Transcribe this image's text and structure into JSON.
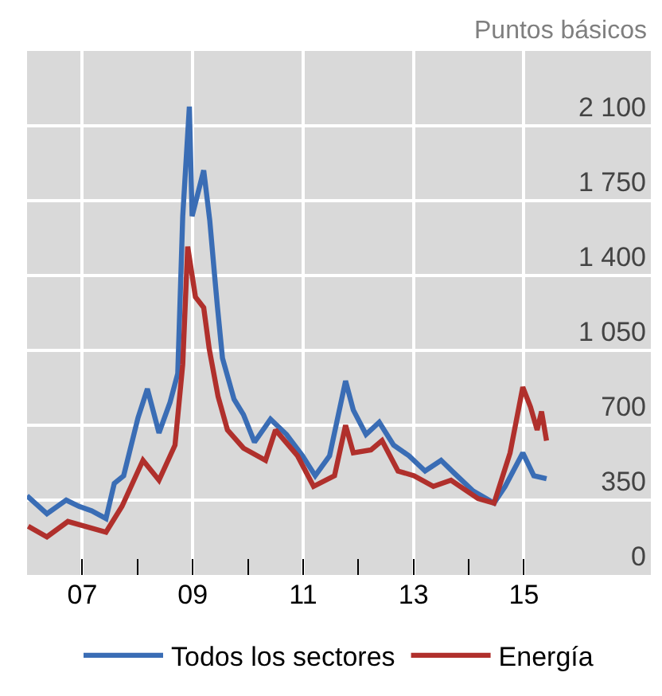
{
  "chart_data": {
    "type": "line",
    "ylabel": "Puntos básicos",
    "xlim": [
      2006,
      2017.3
    ],
    "ylim": [
      0,
      2450
    ],
    "xticks": [
      {
        "value": 2007,
        "label": "07"
      },
      {
        "value": 2008,
        "label": null
      },
      {
        "value": 2009,
        "label": "09"
      },
      {
        "value": 2010,
        "label": null
      },
      {
        "value": 2011,
        "label": "11"
      },
      {
        "value": 2012,
        "label": null
      },
      {
        "value": 2013,
        "label": "13"
      },
      {
        "value": 2014,
        "label": null
      },
      {
        "value": 2015,
        "label": "15"
      }
    ],
    "yticks": [
      {
        "value": 0,
        "label": "0"
      },
      {
        "value": 350,
        "label": "350"
      },
      {
        "value": 700,
        "label": "700"
      },
      {
        "value": 1050,
        "label": "1 050"
      },
      {
        "value": 1400,
        "label": "1 400"
      },
      {
        "value": 1750,
        "label": "1 750"
      },
      {
        "value": 2100,
        "label": "2 100"
      }
    ],
    "grid": true,
    "legend": "bottom",
    "marker": "none",
    "line_style": "solid",
    "series": [
      {
        "name": "Todos los sectores",
        "color": "#3a6db5",
        "x": [
          2006.0,
          2006.36,
          2006.71,
          2006.94,
          2007.17,
          2007.43,
          2007.58,
          2007.75,
          2008.01,
          2008.18,
          2008.39,
          2008.59,
          2008.73,
          2008.82,
          2008.94,
          2008.99,
          2009.2,
          2009.31,
          2009.4,
          2009.45,
          2009.54,
          2009.75,
          2009.92,
          2010.12,
          2010.41,
          2010.7,
          2010.99,
          2011.22,
          2011.48,
          2011.77,
          2011.91,
          2012.14,
          2012.38,
          2012.64,
          2012.92,
          2013.21,
          2013.5,
          2013.73,
          2014.08,
          2014.46,
          2014.66,
          2014.98,
          2015.18,
          2015.41
        ],
        "values": [
          370,
          286,
          350,
          321,
          300,
          264,
          428,
          464,
          735,
          870,
          664,
          807,
          942,
          1678,
          2190,
          1678,
          1892,
          1657,
          1392,
          1250,
          1014,
          821,
          750,
          621,
          728,
          657,
          557,
          464,
          557,
          907,
          771,
          657,
          714,
          607,
          557,
          486,
          536,
          478,
          393,
          336,
          414,
          571,
          464,
          450
        ]
      },
      {
        "name": "Energía",
        "color": "#b0302c",
        "x": [
          2006.02,
          2006.36,
          2006.74,
          2007.43,
          2007.72,
          2008.1,
          2008.39,
          2008.68,
          2008.82,
          2008.91,
          2009.05,
          2009.2,
          2009.3,
          2009.46,
          2009.63,
          2009.92,
          2010.32,
          2010.5,
          2010.9,
          2011.19,
          2011.57,
          2011.77,
          2011.91,
          2012.23,
          2012.43,
          2012.72,
          2013.01,
          2013.36,
          2013.68,
          2014.17,
          2014.46,
          2014.75,
          2014.98,
          2015.12,
          2015.24,
          2015.32,
          2015.41
        ],
        "values": [
          228,
          178,
          250,
          200,
          321,
          536,
          443,
          607,
          985,
          1535,
          1300,
          1250,
          1057,
          835,
          678,
          593,
          536,
          678,
          557,
          414,
          464,
          700,
          571,
          585,
          628,
          486,
          464,
          414,
          443,
          357,
          336,
          571,
          878,
          785,
          678,
          764,
          628
        ]
      }
    ]
  }
}
